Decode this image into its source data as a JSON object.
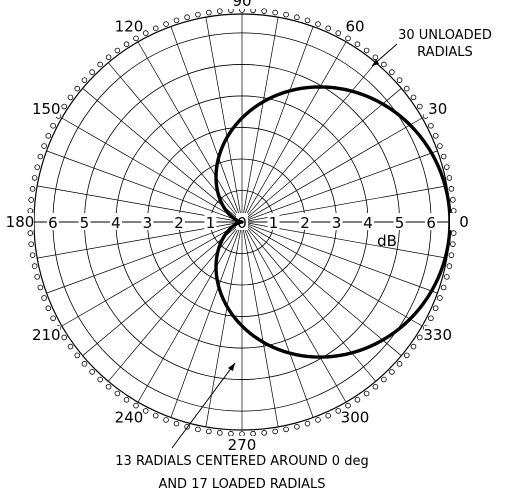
{
  "chart_data": {
    "type": "polar",
    "title": "",
    "radial_unit": "dB",
    "radial_ticks": [
      "0",
      "1",
      "2",
      "3",
      "4",
      "5",
      "6"
    ],
    "radial_range": [
      0,
      6.6
    ],
    "angle_step_minor_deg": 10,
    "angle_labels": [
      {
        "deg": 0,
        "text": "0"
      },
      {
        "deg": 30,
        "text": "30"
      },
      {
        "deg": 60,
        "text": "60"
      },
      {
        "deg": 90,
        "text": "90"
      },
      {
        "deg": 120,
        "text": "120"
      },
      {
        "deg": 150,
        "text": "150"
      },
      {
        "deg": 180,
        "text": "180"
      },
      {
        "deg": 210,
        "text": "210"
      },
      {
        "deg": 240,
        "text": "240"
      },
      {
        "deg": 270,
        "text": "270"
      },
      {
        "deg": 300,
        "text": "300"
      },
      {
        "deg": 330,
        "text": "330"
      }
    ],
    "pattern": {
      "shape": "cardioid",
      "max_db": 6.6,
      "max_at_deg": 0,
      "null_at_deg": 180,
      "samples": [
        {
          "deg": 0,
          "db": 6.6
        },
        {
          "deg": 30,
          "db": 6.2
        },
        {
          "deg": 60,
          "db": 5.0
        },
        {
          "deg": 90,
          "db": 3.3
        },
        {
          "deg": 120,
          "db": 1.7
        },
        {
          "deg": 150,
          "db": 0.4
        },
        {
          "deg": 180,
          "db": 0.0
        },
        {
          "deg": 210,
          "db": 0.4
        },
        {
          "deg": 240,
          "db": 1.7
        },
        {
          "deg": 270,
          "db": 3.3
        },
        {
          "deg": 300,
          "db": 5.0
        },
        {
          "deg": 330,
          "db": 6.2
        }
      ]
    },
    "annotations": [
      {
        "lines": [
          "30 UNLOADED",
          "RADIALS"
        ],
        "type": "edge-ring"
      },
      {
        "lines": [
          "13 RADIALS CENTERED AROUND 0 deg",
          "AND 17 LOADED RADIALS"
        ],
        "type": "pattern"
      }
    ],
    "grid": true,
    "legend": "none"
  }
}
